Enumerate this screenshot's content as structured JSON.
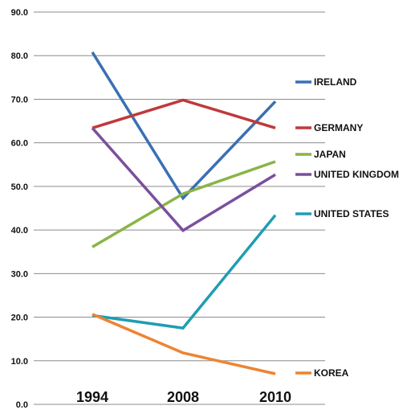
{
  "chart_data": {
    "type": "line",
    "categories": [
      "1994",
      "2008",
      "2010"
    ],
    "series": [
      {
        "name": "IRELAND",
        "values": [
          80.8,
          47.3,
          69.5
        ],
        "color": "#3A70B3"
      },
      {
        "name": "GERMANY",
        "values": [
          63.4,
          69.8,
          63.4
        ],
        "color": "#C0393B"
      },
      {
        "name": "JAPAN",
        "values": [
          36.1,
          48.3,
          55.7
        ],
        "color": "#8AB446"
      },
      {
        "name": "UNITED KINGDOM",
        "values": [
          63.4,
          39.9,
          52.7
        ],
        "color": "#7B4F9D"
      },
      {
        "name": "UNITED STATES",
        "values": [
          20.4,
          17.5,
          43.4
        ],
        "color": "#1E9DB3"
      },
      {
        "name": "KOREA",
        "values": [
          20.7,
          11.8,
          7.0
        ],
        "color": "#EE8431"
      }
    ],
    "ylim": [
      0,
      90
    ],
    "yticks": [
      "0.0",
      "10.0",
      "20.0",
      "30.0",
      "40.0",
      "50.0",
      "60.0",
      "70.0",
      "80.0",
      "90.0"
    ],
    "grid": true,
    "legend": "right"
  }
}
